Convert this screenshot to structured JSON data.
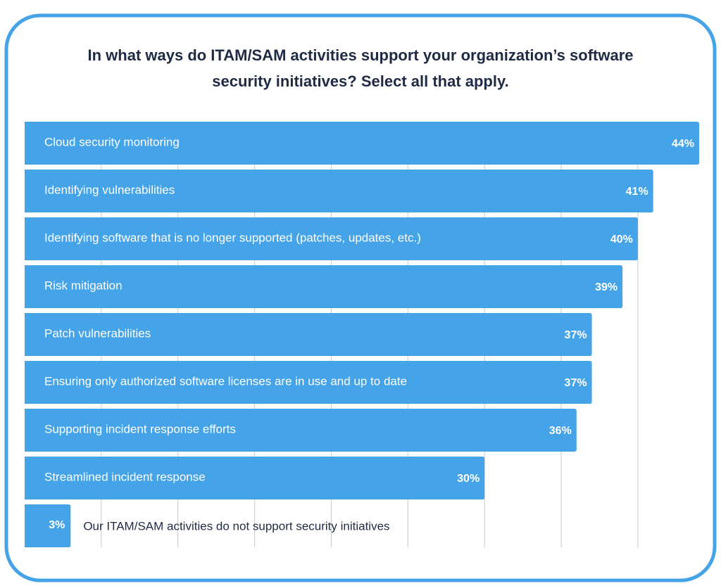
{
  "chart_data": {
    "type": "bar",
    "orientation": "horizontal",
    "title": [
      "In what ways do ITAM/SAM activities support your organization’s software",
      "security initiatives?  Select all that apply."
    ],
    "categories": [
      "Cloud security monitoring",
      "Identifying vulnerabilities",
      "Identifying software that is no longer supported (patches, updates, etc.)",
      "Risk mitigation",
      "Patch vulnerabilities",
      "Ensuring only authorized software licenses are in use and up to date",
      "Supporting incident response efforts",
      "Streamlined incident response",
      "Our ITAM/SAM activities do not support security initiatives"
    ],
    "values": [
      44,
      41,
      40,
      39,
      37,
      37,
      36,
      30,
      3
    ],
    "value_labels": [
      "44%",
      "41%",
      "40%",
      "39%",
      "37%",
      "37%",
      "36%",
      "30%",
      "3%"
    ],
    "color": "#45a3e8",
    "xlim": [
      0,
      44
    ],
    "xticks": [
      5,
      10,
      15,
      20,
      25,
      30,
      35,
      40
    ],
    "grid": true
  }
}
